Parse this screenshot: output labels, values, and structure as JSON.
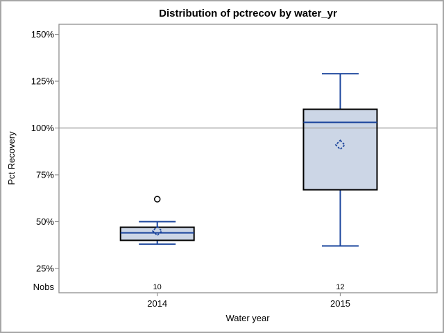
{
  "figure": {
    "title": "Distribution of pctrecov by water_yr"
  },
  "chart_data": {
    "type": "boxplot",
    "title": "Distribution of pctrecov by water_yr",
    "xlabel": "Water year",
    "ylabel": "Pct Recovery",
    "nobs_label": "Nobs",
    "categories": [
      "2014",
      "2015"
    ],
    "y_tick_labels": [
      "25%",
      "50%",
      "75%",
      "100%",
      "125%",
      "150%"
    ],
    "y_tick_values": [
      25,
      50,
      75,
      100,
      125,
      150
    ],
    "ylim": [
      12,
      155.4
    ],
    "reference_line": 100,
    "grid": "off",
    "series": [
      {
        "category": "2014",
        "nobs": "10",
        "whisker_low": 38,
        "q1": 40,
        "median": 44,
        "q3": 47,
        "whisker_high": 50,
        "mean": 45,
        "outliers": [
          62
        ]
      },
      {
        "category": "2015",
        "nobs": "12",
        "whisker_low": 37,
        "q1": 67,
        "median": 103,
        "q3": 110,
        "whisker_high": 129,
        "mean": 91,
        "outliers": []
      }
    ],
    "colors": {
      "box_fill": "#ccd6e6",
      "box_border": "#000000",
      "line_blue": "#1a449c",
      "reference_line": "#a8a8a8",
      "axis": "#8f8f8f",
      "outlier": "#000000",
      "frame": "#a6a6a6",
      "text": "#000000"
    }
  }
}
